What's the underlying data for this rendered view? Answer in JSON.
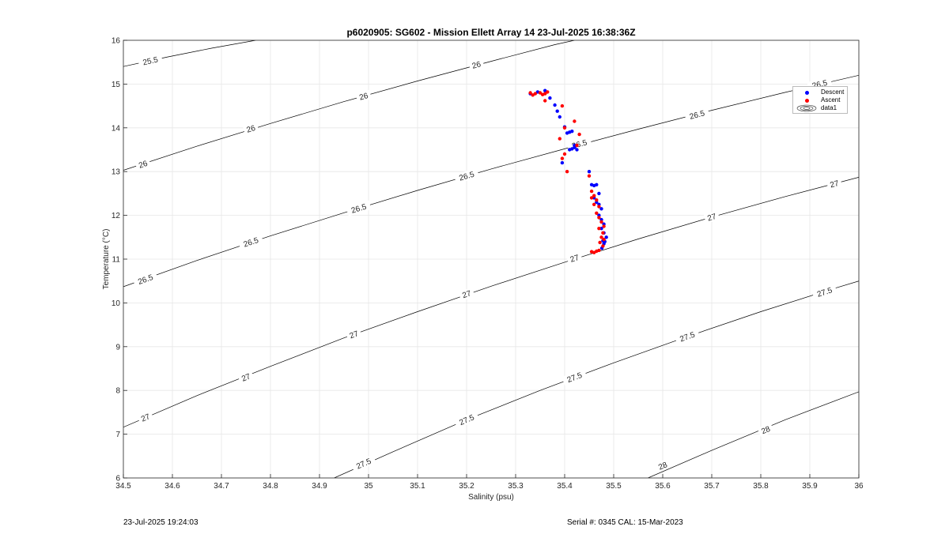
{
  "chart_data": {
    "type": "scatter",
    "title": "p6020905: SG602 - Mission Ellett Array 14 23-Jul-2025 16:38:36Z",
    "xlabel": "Salinity (psu)",
    "ylabel": "Temperature (°C)",
    "xlim": [
      34.5,
      36
    ],
    "ylim": [
      6,
      16
    ],
    "x_ticks": [
      "34.5",
      "34.6",
      "34.7",
      "34.8",
      "34.9",
      "35",
      "35.1",
      "35.2",
      "35.3",
      "35.4",
      "35.5",
      "35.6",
      "35.7",
      "35.8",
      "35.9",
      "36"
    ],
    "y_ticks": [
      "6",
      "7",
      "8",
      "9",
      "10",
      "11",
      "12",
      "13",
      "14",
      "15",
      "16"
    ],
    "grid": true,
    "legend_position": "top-right",
    "legend": [
      "Descent",
      "Ascent",
      "data1"
    ],
    "colors": {
      "descent": "#0000ff",
      "ascent": "#ff0000",
      "contour": "#000000",
      "grid": "#e6e6e6"
    },
    "contours": [
      {
        "level": 25.5,
        "label": "25.5",
        "points": [
          [
            34.5,
            15.4
          ],
          [
            34.59,
            15.62
          ],
          [
            34.68,
            15.82
          ],
          [
            34.77,
            16.0
          ]
        ],
        "labels_at": [
          [
            34.555,
            15.53
          ]
        ]
      },
      {
        "level": 26,
        "label": "26",
        "points": [
          [
            34.5,
            13.03
          ],
          [
            34.65,
            13.58
          ],
          [
            34.8,
            14.1
          ],
          [
            34.95,
            14.6
          ],
          [
            35.1,
            15.07
          ],
          [
            35.25,
            15.52
          ],
          [
            35.38,
            15.9
          ],
          [
            35.42,
            16.0
          ]
        ],
        "labels_at": [
          [
            34.54,
            13.17
          ],
          [
            34.76,
            13.98
          ],
          [
            34.99,
            14.72
          ],
          [
            35.22,
            15.44
          ]
        ]
      },
      {
        "level": 26.5,
        "label": "26.5",
        "points": [
          [
            34.5,
            10.37
          ],
          [
            34.65,
            10.97
          ],
          [
            34.8,
            11.53
          ],
          [
            34.95,
            12.06
          ],
          [
            35.1,
            12.57
          ],
          [
            35.25,
            13.06
          ],
          [
            35.4,
            13.52
          ],
          [
            35.55,
            13.97
          ],
          [
            35.7,
            14.4
          ],
          [
            35.85,
            14.81
          ],
          [
            36.0,
            15.2
          ]
        ],
        "labels_at": [
          [
            34.545,
            10.54
          ],
          [
            34.76,
            11.39
          ],
          [
            34.98,
            12.16
          ],
          [
            35.2,
            12.9
          ],
          [
            35.43,
            13.63
          ],
          [
            35.67,
            14.3
          ],
          [
            35.92,
            15.0
          ]
        ]
      },
      {
        "level": 27,
        "label": "27",
        "points": [
          [
            34.5,
            7.16
          ],
          [
            34.65,
            7.88
          ],
          [
            34.8,
            8.55
          ],
          [
            34.95,
            9.2
          ],
          [
            35.1,
            9.8
          ],
          [
            35.25,
            10.38
          ],
          [
            35.4,
            10.93
          ],
          [
            35.55,
            11.46
          ],
          [
            35.7,
            11.96
          ],
          [
            35.85,
            12.43
          ],
          [
            36.0,
            12.87
          ]
        ],
        "labels_at": [
          [
            34.545,
            7.38
          ],
          [
            34.75,
            8.3
          ],
          [
            34.97,
            9.28
          ],
          [
            35.2,
            10.2
          ],
          [
            35.42,
            11.02
          ],
          [
            35.7,
            11.96
          ],
          [
            35.95,
            12.72
          ]
        ]
      },
      {
        "level": 27.5,
        "label": "27.5",
        "points": [
          [
            34.93,
            6.0
          ],
          [
            35.05,
            6.6
          ],
          [
            35.2,
            7.33
          ],
          [
            35.35,
            8.0
          ],
          [
            35.5,
            8.63
          ],
          [
            35.65,
            9.23
          ],
          [
            35.8,
            9.8
          ],
          [
            35.95,
            10.33
          ],
          [
            36.0,
            10.5
          ]
        ],
        "labels_at": [
          [
            34.99,
            6.33
          ],
          [
            35.2,
            7.33
          ],
          [
            35.42,
            8.3
          ],
          [
            35.65,
            9.23
          ],
          [
            35.93,
            10.25
          ]
        ]
      },
      {
        "level": 28,
        "label": "28",
        "points": [
          [
            35.57,
            6.0
          ],
          [
            35.7,
            6.63
          ],
          [
            35.85,
            7.33
          ],
          [
            36.0,
            7.97
          ],
          [
            36.01,
            8.4
          ]
        ],
        "labels_at": [
          [
            35.6,
            6.28
          ],
          [
            35.81,
            7.1
          ]
        ]
      }
    ],
    "series": [
      {
        "name": "Descent",
        "x": [
          35.33,
          35.345,
          35.36,
          35.37,
          35.38,
          35.385,
          35.39,
          35.4,
          35.405,
          35.41,
          35.415,
          35.42,
          35.41,
          35.415,
          35.42,
          35.425,
          35.395,
          35.45,
          35.455,
          35.46,
          35.465,
          35.47,
          35.46,
          35.465,
          35.47,
          35.475,
          35.47,
          35.475,
          35.48,
          35.475,
          35.48,
          35.485,
          35.478,
          35.482,
          35.48,
          35.476
        ],
        "y": [
          14.78,
          14.82,
          14.85,
          14.68,
          14.52,
          14.38,
          14.25,
          14.02,
          13.88,
          13.9,
          13.92,
          13.6,
          13.5,
          13.52,
          13.55,
          13.5,
          13.2,
          13.0,
          12.7,
          12.68,
          12.7,
          12.5,
          12.4,
          12.3,
          12.25,
          12.15,
          12.0,
          11.9,
          11.8,
          11.7,
          11.6,
          11.5,
          11.42,
          11.4,
          11.35,
          11.25
        ]
      },
      {
        "name": "Ascent",
        "x": [
          35.33,
          35.335,
          35.34,
          35.35,
          35.355,
          35.36,
          35.365,
          35.36,
          35.395,
          35.4,
          35.39,
          35.42,
          35.43,
          35.425,
          35.4,
          35.395,
          35.405,
          35.45,
          35.455,
          35.46,
          35.465,
          35.455,
          35.46,
          35.47,
          35.465,
          35.47,
          35.475,
          35.48,
          35.47,
          35.478,
          35.475,
          35.48,
          35.472,
          35.478,
          35.47,
          35.465,
          35.46,
          35.455
        ],
        "y": [
          14.8,
          14.75,
          14.78,
          14.8,
          14.76,
          14.78,
          14.82,
          14.62,
          14.5,
          14.0,
          13.75,
          14.15,
          13.85,
          13.6,
          13.4,
          13.3,
          13.0,
          12.9,
          12.55,
          12.45,
          12.35,
          12.4,
          12.25,
          12.2,
          12.05,
          11.95,
          11.85,
          11.75,
          11.7,
          11.6,
          11.5,
          11.45,
          11.38,
          11.3,
          11.2,
          11.18,
          11.15,
          11.17
        ]
      }
    ]
  },
  "footer": {
    "left": "23-Jul-2025 19:24:03",
    "right": "Serial #: 0345  CAL: 15-Mar-2023"
  }
}
